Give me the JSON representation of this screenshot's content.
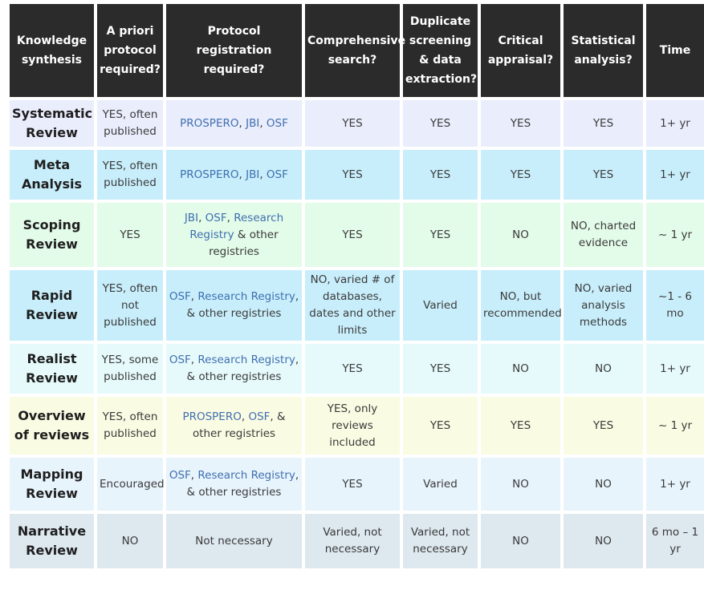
{
  "headers": [
    "Knowledge synthesis",
    "A priori protocol required?",
    "Protocol registration required?",
    "Comprehensive search?",
    "Duplicate screening & data extraction?",
    "Critical appraisal?",
    "Statistical analysis?",
    "Time"
  ],
  "colors": {
    "header_bg": "#2b2b2b",
    "link": "#3f6fb0"
  },
  "rows": [
    {
      "bg": "#eaedfc",
      "type": "Systematic Review",
      "protocol": "YES, often published",
      "registration": [
        {
          "text": "PROSPERO",
          "link": true
        },
        {
          "text": ", ",
          "link": false
        },
        {
          "text": "JBI",
          "link": true
        },
        {
          "text": ", ",
          "link": false
        },
        {
          "text": "OSF",
          "link": true
        }
      ],
      "search": "YES",
      "screening": "YES",
      "appraisal": "YES",
      "stats": "YES",
      "time": "1+ yr"
    },
    {
      "bg": "#c8eefb",
      "type": "Meta Analysis",
      "protocol": "YES, often published",
      "registration": [
        {
          "text": "PROSPERO",
          "link": true
        },
        {
          "text": ", ",
          "link": false
        },
        {
          "text": "JBI",
          "link": true
        },
        {
          "text": ", ",
          "link": false
        },
        {
          "text": "OSF",
          "link": true
        }
      ],
      "search": "YES",
      "screening": "YES",
      "appraisal": "YES",
      "stats": "YES",
      "time": "1+ yr"
    },
    {
      "bg": "#e3fbe9",
      "type": "Scoping Review",
      "protocol": "YES",
      "registration": [
        {
          "text": "JBI",
          "link": true
        },
        {
          "text": ", ",
          "link": false
        },
        {
          "text": "OSF",
          "link": true
        },
        {
          "text": ", ",
          "link": false
        },
        {
          "text": "Research Registry",
          "link": true
        },
        {
          "text": " & other registries",
          "link": false
        }
      ],
      "search": "YES",
      "screening": "YES",
      "appraisal": "NO",
      "stats": "NO, charted evidence",
      "time": "~ 1 yr"
    },
    {
      "bg": "#c8eefb",
      "type": "Rapid Review",
      "protocol": "YES, often not published",
      "registration": [
        {
          "text": "OSF",
          "link": true
        },
        {
          "text": ", ",
          "link": false
        },
        {
          "text": "Research Registry",
          "link": true
        },
        {
          "text": ", & other registries",
          "link": false
        }
      ],
      "search": "NO, varied # of databases, dates and other limits",
      "screening": "Varied",
      "appraisal": "NO, but recommended",
      "stats": "NO, varied analysis methods",
      "time": "~1 - 6 mo"
    },
    {
      "bg": "#e6fafb",
      "type": "Realist Review",
      "protocol": "YES, some published",
      "registration": [
        {
          "text": "OSF",
          "link": true
        },
        {
          "text": ", ",
          "link": false
        },
        {
          "text": "Research Registry",
          "link": true
        },
        {
          "text": ", & other registries",
          "link": false
        }
      ],
      "search": "YES",
      "screening": "YES",
      "appraisal": "NO",
      "stats": "NO",
      "time": "1+ yr"
    },
    {
      "bg": "#fafbe3",
      "type": "Overview of reviews",
      "protocol": "YES, often published",
      "registration": [
        {
          "text": "PROSPERO",
          "link": true
        },
        {
          "text": ", ",
          "link": false
        },
        {
          "text": "OSF",
          "link": true
        },
        {
          "text": ", & other registries",
          "link": false
        }
      ],
      "search": "YES, only reviews included",
      "screening": "YES",
      "appraisal": "YES",
      "stats": "YES",
      "time": "~ 1 yr"
    },
    {
      "bg": "#e8f4fc",
      "type": "Mapping Review",
      "protocol": "Encouraged",
      "registration": [
        {
          "text": "OSF",
          "link": true
        },
        {
          "text": ", ",
          "link": false
        },
        {
          "text": "Research Registry",
          "link": true
        },
        {
          "text": ", & other registries",
          "link": false
        }
      ],
      "search": "YES",
      "screening": "Varied",
      "appraisal": "NO",
      "stats": "NO",
      "time": "1+ yr"
    },
    {
      "bg": "#dde8ef",
      "type": "Narrative Review",
      "protocol": "NO",
      "registration": [
        {
          "text": "Not necessary",
          "link": false
        }
      ],
      "search": "Varied, not necessary",
      "screening": "Varied, not necessary",
      "appraisal": "NO",
      "stats": "NO",
      "time": "6 mo – 1 yr"
    }
  ]
}
